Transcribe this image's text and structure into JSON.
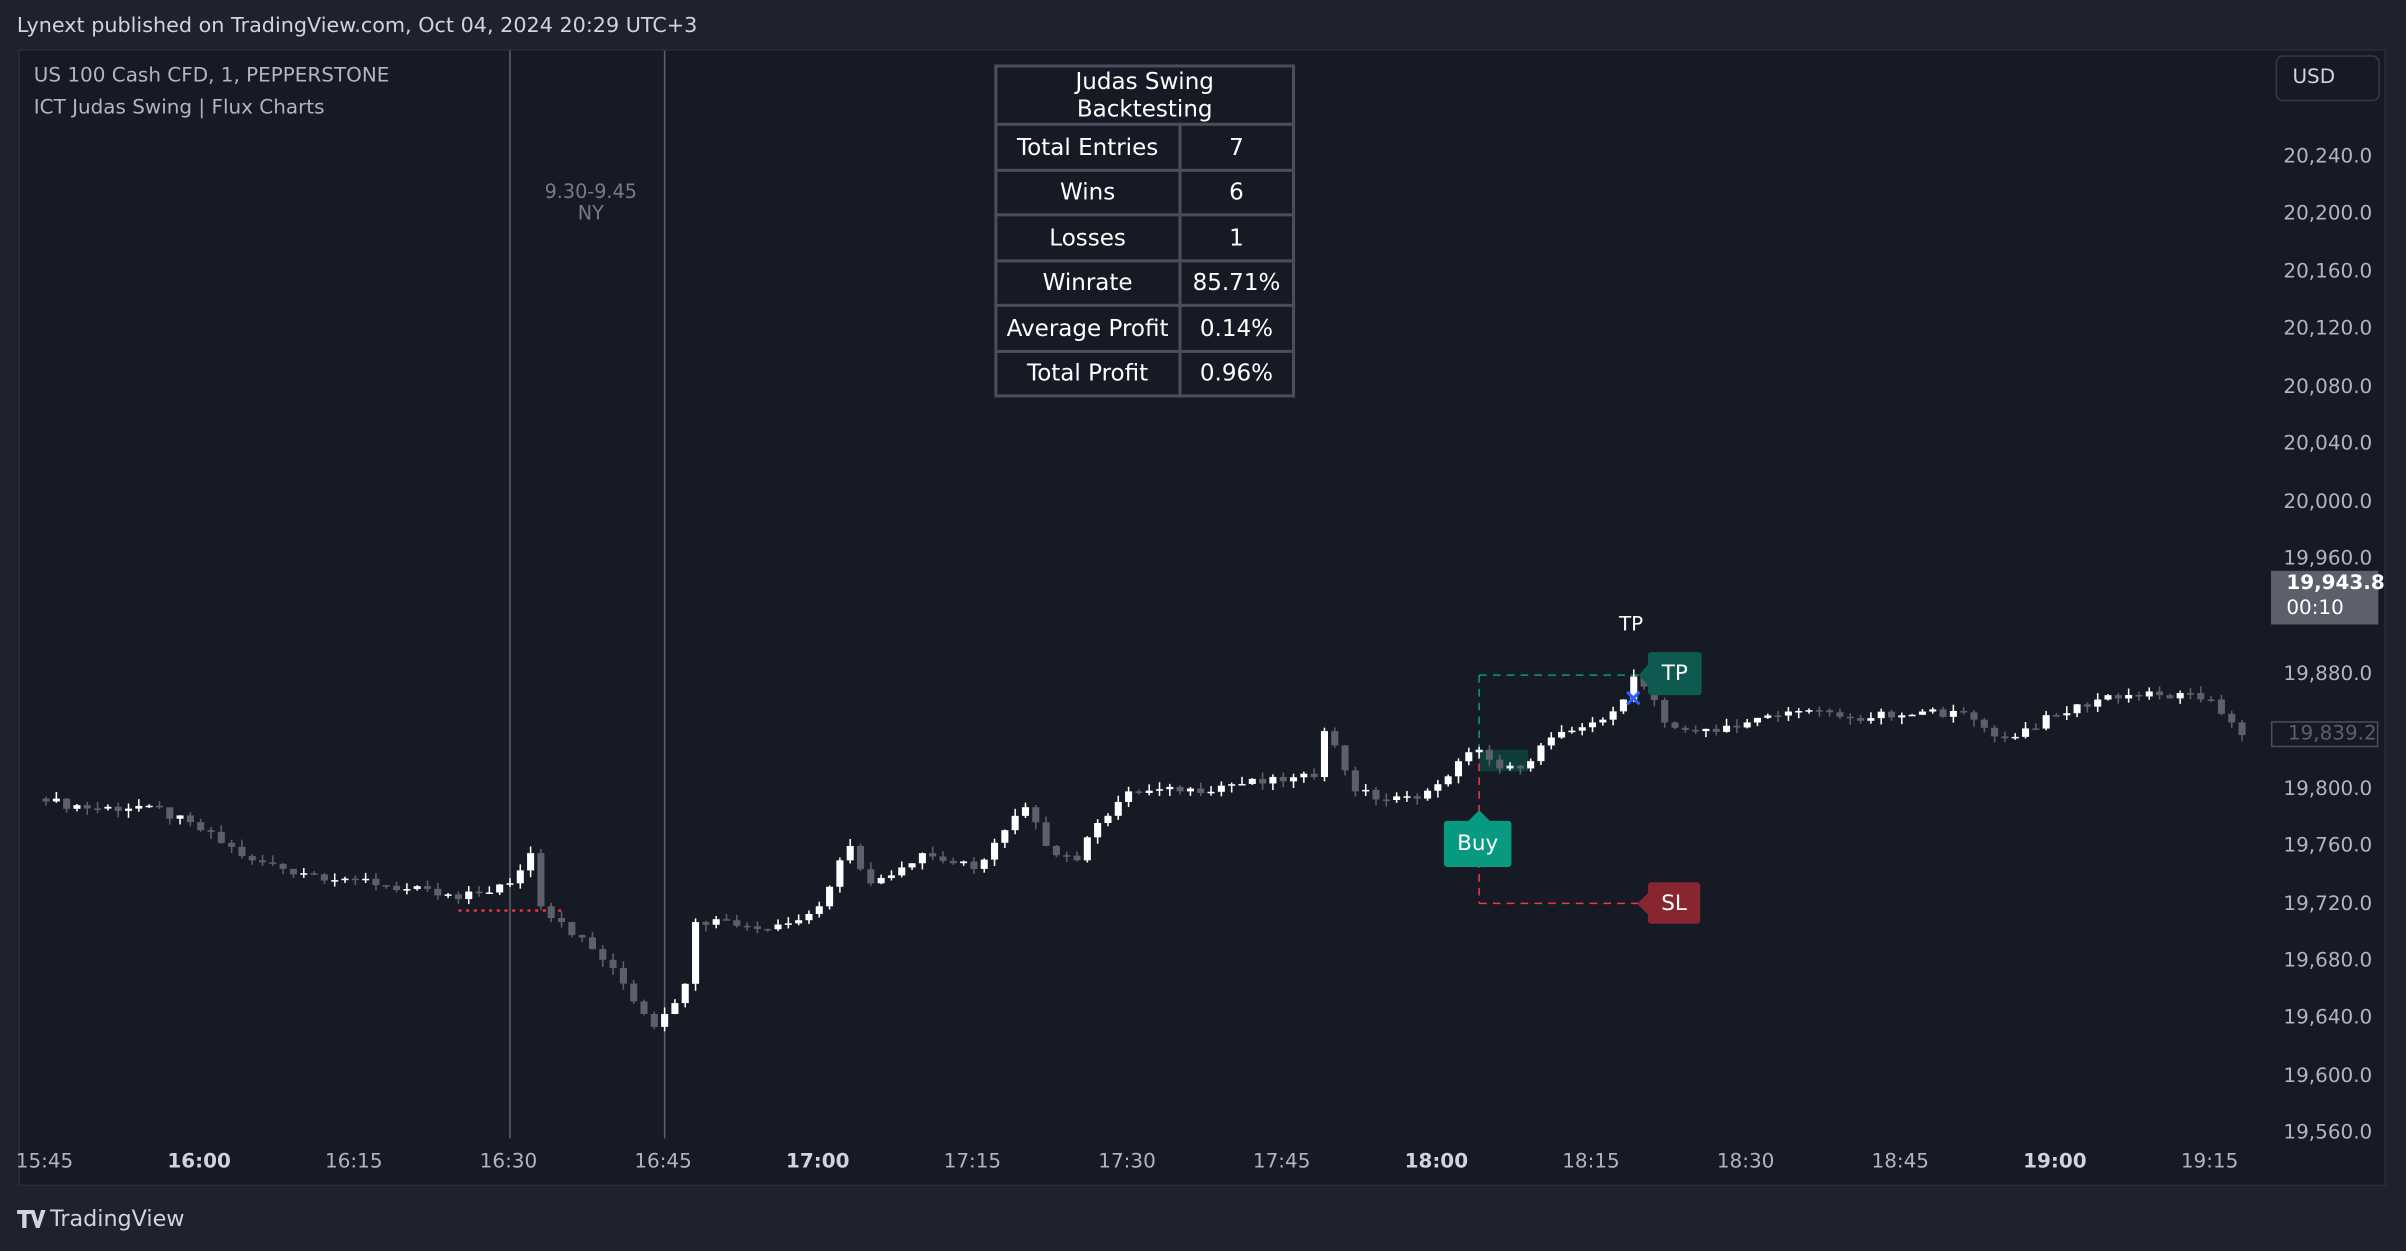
{
  "header": {
    "published": "Lynext published on TradingView.com, Oct 04, 2024 20:29 UTC+3"
  },
  "legend": {
    "symbol": "US 100 Cash CFD, 1, PEPPERSTONE",
    "indicator": "ICT Judas Swing | Flux Charts"
  },
  "currency_button": "USD",
  "session_label": {
    "line1": "9.30-9.45",
    "line2": "NY"
  },
  "backtest_table": {
    "title": "Judas Swing Backtesting",
    "rows": [
      {
        "label": "Total Entries",
        "value": "7"
      },
      {
        "label": "Wins",
        "value": "6"
      },
      {
        "label": "Losses",
        "value": "1"
      },
      {
        "label": "Winrate",
        "value": "85.71%"
      },
      {
        "label": "Average Profit",
        "value": "0.14%"
      },
      {
        "label": "Total Profit",
        "value": "0.96%"
      }
    ]
  },
  "markers": {
    "buy": "Buy",
    "tp": "TP",
    "sl": "SL",
    "tp_hit": "TP"
  },
  "price_axis": {
    "ticks": [
      "20,240.0",
      "20,200.0",
      "20,160.0",
      "20,120.0",
      "20,080.0",
      "20,040.0",
      "20,000.0",
      "19,960.0",
      "19,880.0",
      "19,800.0",
      "19,760.0",
      "19,720.0",
      "19,680.0",
      "19,640.0",
      "19,600.0",
      "19,560.0"
    ],
    "current_price": "19,943.8",
    "countdown": "00:10",
    "last_price": "19,839.2"
  },
  "time_axis": {
    "ticks": [
      {
        "label": "15:45",
        "bold": false
      },
      {
        "label": "16:00",
        "bold": true
      },
      {
        "label": "16:15",
        "bold": false
      },
      {
        "label": "16:30",
        "bold": false
      },
      {
        "label": "16:45",
        "bold": false
      },
      {
        "label": "17:00",
        "bold": true
      },
      {
        "label": "17:15",
        "bold": false
      },
      {
        "label": "17:30",
        "bold": false
      },
      {
        "label": "17:45",
        "bold": false
      },
      {
        "label": "18:00",
        "bold": true
      },
      {
        "label": "18:15",
        "bold": false
      },
      {
        "label": "18:30",
        "bold": false
      },
      {
        "label": "18:45",
        "bold": false
      },
      {
        "label": "19:00",
        "bold": true
      },
      {
        "label": "19:15",
        "bold": false
      }
    ]
  },
  "footer": {
    "brand": "TradingView"
  },
  "colors": {
    "background": "#161a25",
    "up_candle": "#ffffff",
    "down_candle": "#5d606b",
    "buy": "#089981",
    "tp": "#0f5a50",
    "sl": "#87262f",
    "tp_cross": "#2962ff"
  },
  "chart_data": {
    "type": "candlestick",
    "timeframe": "1",
    "ylim": [
      19560,
      20260
    ],
    "xlim": [
      "15:45",
      "19:18"
    ],
    "close_path": [
      [
        "15:45",
        19793
      ],
      [
        "15:50",
        19788
      ],
      [
        "15:55",
        19790
      ],
      [
        "16:00",
        19773
      ],
      [
        "16:05",
        19752
      ],
      [
        "16:10",
        19743
      ],
      [
        "16:15",
        19739
      ],
      [
        "16:20",
        19732
      ],
      [
        "16:25",
        19725
      ],
      [
        "16:30",
        19736
      ],
      [
        "16:32",
        19757
      ],
      [
        "16:33",
        19720
      ],
      [
        "16:35",
        19709
      ],
      [
        "16:40",
        19677
      ],
      [
        "16:43",
        19645
      ],
      [
        "16:44",
        19636
      ],
      [
        "16:45",
        19645
      ],
      [
        "16:47",
        19666
      ],
      [
        "16:48",
        19709
      ],
      [
        "16:50",
        19711
      ],
      [
        "16:55",
        19704
      ],
      [
        "17:00",
        19720
      ],
      [
        "17:02",
        19752
      ],
      [
        "17:03",
        19762
      ],
      [
        "17:05",
        19736
      ],
      [
        "17:10",
        19757
      ],
      [
        "17:15",
        19746
      ],
      [
        "17:18",
        19773
      ],
      [
        "17:20",
        19789
      ],
      [
        "17:22",
        19762
      ],
      [
        "17:25",
        19752
      ],
      [
        "17:27",
        19778
      ],
      [
        "17:30",
        19800
      ],
      [
        "17:35",
        19800
      ],
      [
        "17:40",
        19805
      ],
      [
        "17:45",
        19807
      ],
      [
        "17:48",
        19810
      ],
      [
        "17:49",
        19842
      ],
      [
        "17:50",
        19832
      ],
      [
        "17:52",
        19800
      ],
      [
        "17:55",
        19794
      ],
      [
        "17:58",
        19795
      ],
      [
        "18:00",
        19805
      ],
      [
        "18:02",
        19821
      ],
      [
        "18:04",
        19829
      ],
      [
        "18:06",
        19816
      ],
      [
        "18:08",
        19816
      ],
      [
        "18:10",
        19832
      ],
      [
        "18:15",
        19848
      ],
      [
        "18:18",
        19864
      ],
      [
        "18:19",
        19880
      ],
      [
        "18:20",
        19873
      ],
      [
        "18:22",
        19848
      ],
      [
        "18:25",
        19842
      ],
      [
        "18:30",
        19848
      ],
      [
        "18:35",
        19856
      ],
      [
        "18:40",
        19851
      ],
      [
        "18:45",
        19853
      ],
      [
        "18:50",
        19856
      ],
      [
        "18:55",
        19837
      ],
      [
        "19:00",
        19853
      ],
      [
        "19:05",
        19867
      ],
      [
        "19:10",
        19867
      ],
      [
        "19:15",
        19864
      ],
      [
        "19:17",
        19848
      ],
      [
        "19:18",
        19839.2
      ]
    ],
    "sessions": [
      {
        "start": "16:30",
        "end": "16:45"
      }
    ],
    "judas_level": {
      "price": 19717,
      "from": "16:25",
      "to": "16:35"
    },
    "trade": {
      "side": "Buy",
      "entry_time": "18:04",
      "entry": 19829,
      "tp": 19881,
      "sl": 19722,
      "exit_time": "18:20"
    }
  }
}
